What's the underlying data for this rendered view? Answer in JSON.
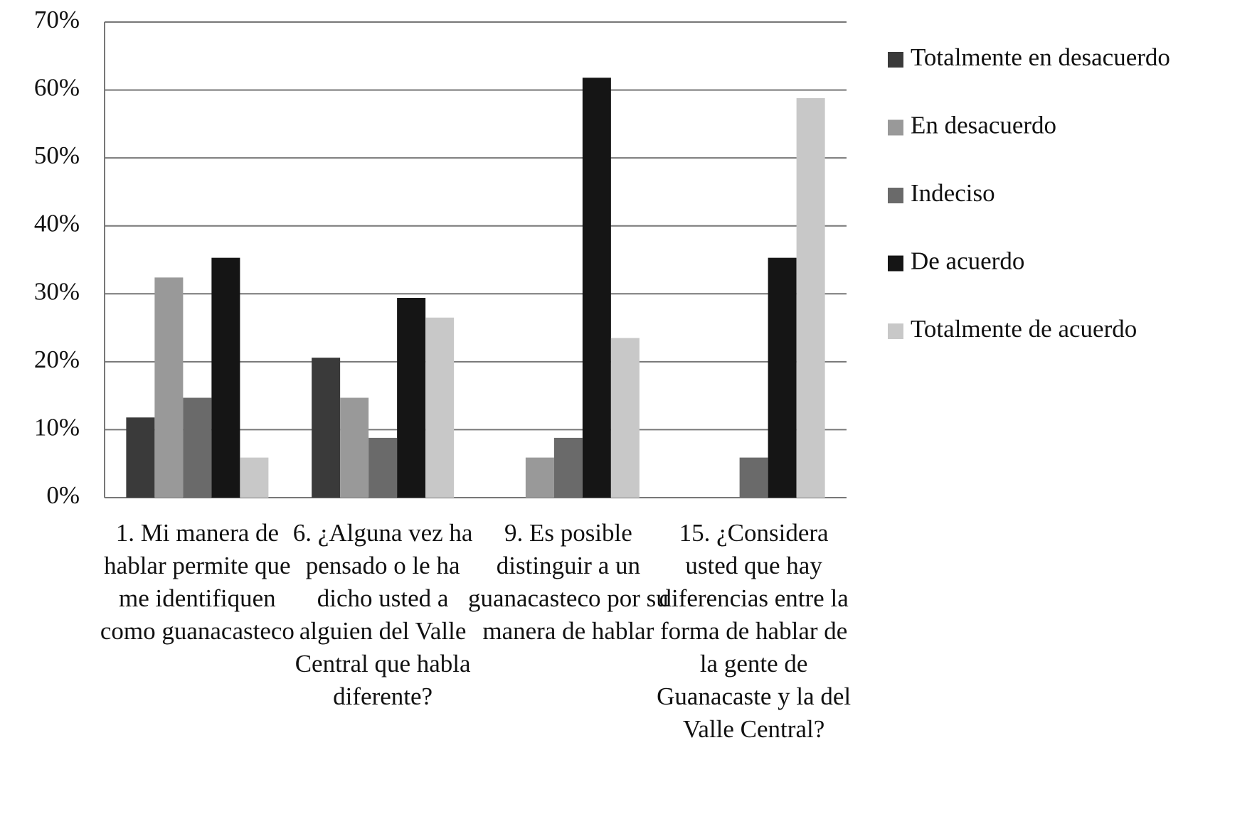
{
  "chart_data": {
    "type": "bar",
    "categories": [
      "1. Mi manera de hablar permite que me identifiquen como guanacasteco",
      "6. ¿Alguna vez ha pensado o le ha dicho usted a alguien del Valle Central que habla diferente?",
      "9. Es posible distinguir a un guanacasteco por su manera de hablar",
      "15. ¿Considera usted que hay diferencias entre la forma de hablar de la gente de Guanacaste y la del Valle Central?"
    ],
    "series": [
      {
        "name": "Totalmente en desacuerdo",
        "color": "#3a3a3a",
        "values": [
          11.8,
          20.6,
          0,
          0
        ]
      },
      {
        "name": "En desacuerdo",
        "color": "#999999",
        "values": [
          32.4,
          14.7,
          5.9,
          0
        ]
      },
      {
        "name": "Indeciso",
        "color": "#6a6a6a",
        "values": [
          14.7,
          8.8,
          8.8,
          5.9
        ]
      },
      {
        "name": "De acuerdo",
        "color": "#151515",
        "values": [
          35.3,
          29.4,
          61.8,
          35.3
        ]
      },
      {
        "name": "Totalmente de acuerdo",
        "color": "#c8c8c8",
        "values": [
          5.9,
          26.5,
          23.5,
          58.8
        ]
      }
    ],
    "ylim": [
      0,
      70
    ],
    "yticks": [
      {
        "value": 0,
        "label": "0%"
      },
      {
        "value": 10,
        "label": "10%"
      },
      {
        "value": 20,
        "label": "20%"
      },
      {
        "value": 30,
        "label": "30%"
      },
      {
        "value": 40,
        "label": "40%"
      },
      {
        "value": 50,
        "label": "50%"
      },
      {
        "value": 60,
        "label": "60%"
      },
      {
        "value": 70,
        "label": "70%"
      }
    ],
    "grid": true,
    "legend": "right"
  }
}
